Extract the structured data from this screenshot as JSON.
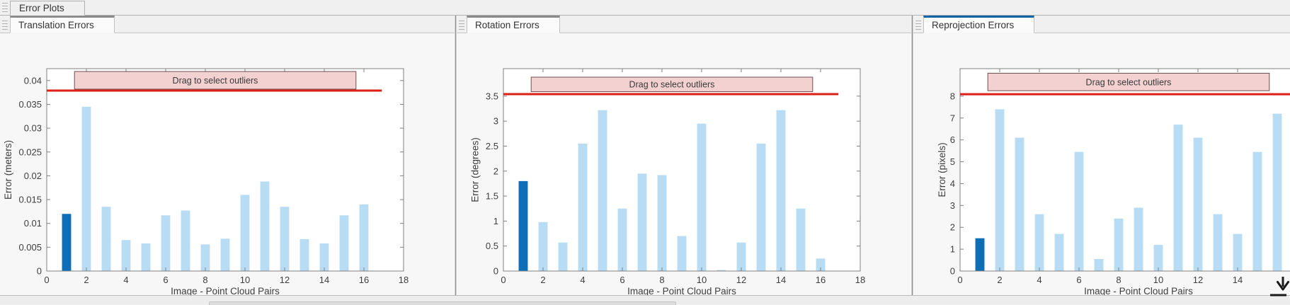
{
  "window": {
    "doc_tab_label": "Error Plots"
  },
  "panels": [
    {
      "tab_label": "Translation Errors",
      "active": false
    },
    {
      "tab_label": "Rotation Errors",
      "active": false
    },
    {
      "tab_label": "Reprojection Errors",
      "active": true
    }
  ],
  "colors": {
    "bar_light": "#b9dcf5",
    "bar_highlight": "#0e6fb6",
    "threshold_red": "#dd1e14",
    "band_fill": "#f3d1d1",
    "band_border": "#6e5050",
    "band_text": "#3a3a3a",
    "active_tab_accent": "#1164a7",
    "inactive_tab_accent": "#8a8a8a",
    "axes_color": "#808080",
    "text_color": "#3e3e3e"
  },
  "chart_data": [
    {
      "type": "bar",
      "name": "translation-errors",
      "title": "Translation Errors",
      "xlabel": "Image - Point Cloud Pairs",
      "ylabel": "Error (meters)",
      "x": [
        1,
        2,
        3,
        4,
        5,
        6,
        7,
        8,
        9,
        10,
        11,
        12,
        13,
        14,
        15,
        16
      ],
      "values": [
        0.012,
        0.0345,
        0.0135,
        0.0065,
        0.0058,
        0.0117,
        0.0127,
        0.0056,
        0.0068,
        0.016,
        0.0188,
        0.0135,
        0.0067,
        0.0058,
        0.0117,
        0.014
      ],
      "highlighted_bar_index": 0,
      "bar_width_units": 0.46,
      "xlim": [
        0,
        18
      ],
      "ylim": [
        0,
        0.0425
      ],
      "xticks": [
        0,
        2,
        4,
        6,
        8,
        10,
        12,
        14,
        16,
        18
      ],
      "yticks": [
        0,
        0.005,
        0.01,
        0.015,
        0.02,
        0.025,
        0.03,
        0.035,
        0.04
      ],
      "ytick_labels": [
        "0",
        "0.005",
        "0.01",
        "0.015",
        "0.02",
        "0.025",
        "0.03",
        "0.035",
        "0.04"
      ],
      "grid": false,
      "legend": null,
      "threshold": 0.0379,
      "threshold_x": [
        0,
        16.9
      ],
      "band": {
        "label": "Drag to select outliers",
        "x0": 1.4,
        "x1": 15.6,
        "y0": 0.0382,
        "y1": 0.0419
      }
    },
    {
      "type": "bar",
      "name": "rotation-errors",
      "title": "Rotation Errors",
      "xlabel": "Image - Point Cloud Pairs",
      "ylabel": "Error (degrees)",
      "x": [
        1,
        2,
        3,
        4,
        5,
        6,
        7,
        8,
        9,
        10,
        11,
        12,
        13,
        14,
        15,
        16
      ],
      "values": [
        1.8,
        0.98,
        0.57,
        2.55,
        3.22,
        1.25,
        1.95,
        1.92,
        0.7,
        2.95,
        0.02,
        0.57,
        2.55,
        3.22,
        1.25,
        0.25
      ],
      "highlighted_bar_index": 0,
      "bar_width_units": 0.46,
      "xlim": [
        0,
        18
      ],
      "ylim": [
        0,
        4.05
      ],
      "xticks": [
        0,
        2,
        4,
        6,
        8,
        10,
        12,
        14,
        16,
        18
      ],
      "yticks": [
        0,
        0.5,
        1,
        1.5,
        2,
        2.5,
        3,
        3.5
      ],
      "ytick_labels": [
        "0",
        "0.5",
        "1",
        "1.5",
        "2",
        "2.5",
        "3",
        "3.5"
      ],
      "grid": false,
      "legend": null,
      "threshold": 3.54,
      "threshold_x": [
        0,
        16.9
      ],
      "band": {
        "label": "Drag to select outliers",
        "x0": 1.4,
        "x1": 15.6,
        "y0": 3.59,
        "y1": 3.88
      }
    },
    {
      "type": "bar",
      "name": "reprojection-errors",
      "title": "Reprojection Errors",
      "xlabel": "Image - Point Cloud Pairs",
      "ylabel": "Error (pixels)",
      "x": [
        1,
        2,
        3,
        4,
        5,
        6,
        7,
        8,
        9,
        10,
        11,
        12,
        13,
        14,
        15,
        16
      ],
      "values": [
        1.5,
        7.4,
        6.1,
        2.6,
        1.7,
        5.45,
        0.55,
        2.4,
        2.9,
        1.2,
        6.7,
        6.1,
        2.6,
        1.7,
        5.45,
        7.2
      ],
      "highlighted_bar_index": 0,
      "bar_width_units": 0.46,
      "xlim": [
        0,
        18
      ],
      "ylim": [
        0,
        9.26
      ],
      "xticks": [
        0,
        2,
        4,
        6,
        8,
        10,
        12,
        14
      ],
      "yticks": [
        0,
        1,
        2,
        3,
        4,
        5,
        6,
        7,
        8
      ],
      "ytick_labels": [
        "0",
        "1",
        "2",
        "3",
        "4",
        "5",
        "6",
        "7",
        "8"
      ],
      "grid": false,
      "legend": null,
      "threshold": 8.09,
      "threshold_x": [
        0,
        16.9
      ],
      "band": {
        "label": "Drag to select outliers",
        "x0": 1.4,
        "x1": 15.6,
        "y0": 8.25,
        "y1": 9.05
      }
    }
  ],
  "icons": {
    "bottom_right_cursor": "down-arrow-with-bar"
  }
}
